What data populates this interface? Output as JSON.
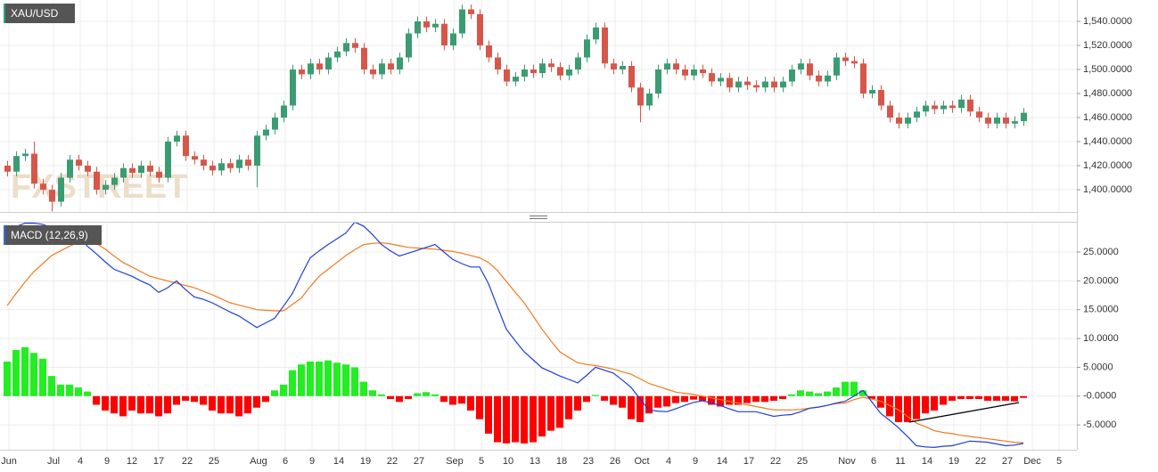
{
  "chart_data": [
    {
      "type": "candlestick",
      "title": "XAU/USD",
      "watermark": "FXSTREET",
      "up_color": "#3b9c72",
      "down_color": "#d6574a",
      "ylim": [
        1381.5,
        1557.8
      ],
      "yticks": [
        {
          "value": 1400,
          "label": "1,400.0000"
        },
        {
          "value": 1420,
          "label": "1,420.0000"
        },
        {
          "value": 1440,
          "label": "1,440.0000"
        },
        {
          "value": 1460,
          "label": "1,460.0000"
        },
        {
          "value": 1480,
          "label": "1,480.0000"
        },
        {
          "value": 1500,
          "label": "1,500.0000"
        },
        {
          "value": 1520,
          "label": "1,520.0000"
        },
        {
          "value": 1540,
          "label": "1,540.0000"
        }
      ],
      "grid": true,
      "open": [
        1420,
        1415,
        1428,
        1430,
        1405,
        1400,
        1390,
        1410,
        1425,
        1420,
        1415,
        1400,
        1404,
        1410,
        1418,
        1414,
        1420,
        1415,
        1410,
        1440,
        1445,
        1428,
        1425,
        1420,
        1416,
        1422,
        1418,
        1425,
        1420,
        1445,
        1450,
        1460,
        1470,
        1500,
        1496,
        1505,
        1500,
        1510,
        1515,
        1522,
        1518,
        1500,
        1496,
        1505,
        1500,
        1510,
        1530,
        1540,
        1535,
        1538,
        1520,
        1530,
        1550,
        1546,
        1520,
        1510,
        1500,
        1490,
        1494,
        1500,
        1497,
        1505,
        1502,
        1495,
        1500,
        1510,
        1525,
        1535,
        1505,
        1500,
        1503,
        1485,
        1470,
        1480,
        1500,
        1505,
        1500,
        1495,
        1500,
        1497,
        1490,
        1493,
        1485,
        1490,
        1487,
        1485,
        1490,
        1485,
        1490,
        1500,
        1505,
        1495,
        1490,
        1495,
        1510,
        1507,
        1505,
        1480,
        1483,
        1470,
        1460,
        1455,
        1460,
        1465,
        1470,
        1467,
        1470,
        1468,
        1475,
        1465,
        1460,
        1455,
        1460,
        1455,
        1457
      ],
      "high": [
        1424,
        1432,
        1434,
        1440,
        1409,
        1404,
        1414,
        1429,
        1429,
        1424,
        1419,
        1408,
        1414,
        1422,
        1422,
        1424,
        1424,
        1419,
        1444,
        1449,
        1449,
        1432,
        1429,
        1424,
        1426,
        1426,
        1429,
        1429,
        1449,
        1454,
        1464,
        1474,
        1504,
        1504,
        1509,
        1509,
        1514,
        1519,
        1526,
        1526,
        1522,
        1504,
        1509,
        1509,
        1514,
        1534,
        1544,
        1544,
        1542,
        1542,
        1534,
        1554,
        1554,
        1550,
        1524,
        1514,
        1504,
        1498,
        1504,
        1504,
        1509,
        1509,
        1506,
        1504,
        1514,
        1529,
        1539,
        1539,
        1509,
        1507,
        1507,
        1489,
        1484,
        1504,
        1509,
        1509,
        1504,
        1504,
        1504,
        1501,
        1497,
        1497,
        1494,
        1494,
        1491,
        1494,
        1494,
        1494,
        1504,
        1509,
        1509,
        1499,
        1499,
        1514,
        1514,
        1511,
        1509,
        1487,
        1487,
        1474,
        1464,
        1464,
        1469,
        1474,
        1474,
        1474,
        1474,
        1479,
        1479,
        1469,
        1464,
        1464,
        1464,
        1461,
        1468
      ],
      "low": [
        1411,
        1411,
        1424,
        1401,
        1396,
        1382,
        1386,
        1406,
        1416,
        1411,
        1396,
        1396,
        1400,
        1406,
        1410,
        1410,
        1411,
        1406,
        1406,
        1436,
        1424,
        1421,
        1416,
        1412,
        1412,
        1414,
        1414,
        1416,
        1402,
        1441,
        1446,
        1456,
        1466,
        1492,
        1492,
        1496,
        1496,
        1506,
        1511,
        1514,
        1496,
        1492,
        1492,
        1496,
        1496,
        1506,
        1526,
        1531,
        1531,
        1516,
        1516,
        1526,
        1542,
        1516,
        1506,
        1496,
        1486,
        1486,
        1490,
        1493,
        1493,
        1498,
        1491,
        1491,
        1496,
        1506,
        1521,
        1501,
        1496,
        1496,
        1481,
        1456,
        1466,
        1476,
        1496,
        1496,
        1491,
        1491,
        1493,
        1486,
        1486,
        1481,
        1481,
        1483,
        1481,
        1481,
        1481,
        1481,
        1486,
        1496,
        1491,
        1486,
        1486,
        1491,
        1503,
        1501,
        1476,
        1476,
        1466,
        1456,
        1451,
        1451,
        1456,
        1461,
        1463,
        1463,
        1464,
        1464,
        1461,
        1456,
        1451,
        1451,
        1451,
        1451,
        1453
      ],
      "close": [
        1415,
        1428,
        1430,
        1405,
        1400,
        1390,
        1410,
        1425,
        1420,
        1415,
        1400,
        1404,
        1410,
        1418,
        1414,
        1420,
        1415,
        1410,
        1440,
        1445,
        1428,
        1425,
        1420,
        1416,
        1422,
        1418,
        1425,
        1420,
        1445,
        1450,
        1460,
        1470,
        1500,
        1496,
        1505,
        1500,
        1510,
        1515,
        1522,
        1518,
        1500,
        1496,
        1505,
        1500,
        1510,
        1530,
        1540,
        1535,
        1538,
        1520,
        1530,
        1550,
        1546,
        1520,
        1510,
        1500,
        1490,
        1494,
        1500,
        1497,
        1505,
        1502,
        1495,
        1500,
        1510,
        1525,
        1535,
        1505,
        1500,
        1503,
        1485,
        1470,
        1480,
        1500,
        1505,
        1500,
        1495,
        1500,
        1497,
        1490,
        1493,
        1485,
        1490,
        1487,
        1485,
        1490,
        1485,
        1490,
        1500,
        1505,
        1495,
        1490,
        1495,
        1510,
        1507,
        1505,
        1480,
        1483,
        1470,
        1460,
        1455,
        1460,
        1465,
        1470,
        1467,
        1470,
        1468,
        1475,
        1465,
        1460,
        1455,
        1460,
        1455,
        1457,
        1464
      ]
    },
    {
      "type": "macd",
      "title": "MACD (12,26,9)",
      "ylim": [
        -9.3,
        30.1
      ],
      "yticks": [
        {
          "value": -5,
          "label": "-5.0000"
        },
        {
          "value": 0,
          "label": "-0.0000"
        },
        {
          "value": 5,
          "label": "5.0000"
        },
        {
          "value": 10,
          "label": "10.0000"
        },
        {
          "value": 15,
          "label": "15.0000"
        },
        {
          "value": 20,
          "label": "20.0000"
        },
        {
          "value": 25,
          "label": "25.0000"
        }
      ],
      "grid": true,
      "x_labels": [
        "Jun",
        "Jul",
        "4",
        "9",
        "12",
        "17",
        "22",
        "25",
        "Aug",
        "6",
        "9",
        "14",
        "19",
        "22",
        "27",
        "Sep",
        "5",
        "10",
        "13",
        "18",
        "23",
        "26",
        "Oct",
        "4",
        "9",
        "14",
        "17",
        "22",
        "25",
        "Nov",
        "6",
        "11",
        "14",
        "19",
        "22",
        "27",
        "Dec",
        "5"
      ],
      "histogram": {
        "up_color": "#22ee22",
        "down_color": "#ff0000",
        "values": [
          6,
          8,
          8.5,
          7.5,
          6.5,
          3.5,
          2,
          2,
          1.5,
          0.8,
          -1.5,
          -2.5,
          -3,
          -3.5,
          -2.5,
          -3,
          -3,
          -3.5,
          -3,
          -1.5,
          -0.8,
          -1,
          -1.5,
          -2.5,
          -3,
          -3,
          -3.5,
          -3,
          -2,
          -1,
          1,
          2,
          4.5,
          5.5,
          6,
          6,
          6.2,
          5.8,
          5.5,
          5,
          2.5,
          1,
          0.3,
          -0.5,
          -1,
          -0.5,
          0.5,
          0.7,
          0.3,
          -1,
          -1.5,
          -1.3,
          -2.5,
          -4,
          -6.5,
          -8,
          -8.2,
          -8,
          -8.2,
          -8,
          -7,
          -6,
          -5.5,
          -4,
          -2.5,
          -1,
          0.2,
          -0.8,
          -1.5,
          -2,
          -4,
          -4.5,
          -3,
          -2,
          -1.8,
          -1.2,
          -1,
          -0.6,
          -0.8,
          -1.5,
          -1.8,
          -1.5,
          -1.5,
          -1.2,
          -1,
          -1,
          -0.8,
          -0.5,
          0.3,
          1,
          0.8,
          0.5,
          0.8,
          1.5,
          2.5,
          2.5,
          1,
          -0.5,
          -2,
          -3.5,
          -4.5,
          -4.5,
          -4,
          -3,
          -2.5,
          -1.5,
          -0.8,
          -0.5,
          -0.5,
          -0.5,
          -0.8,
          -0.8,
          -0.8,
          -0.9,
          -0.3
        ]
      },
      "macd": {
        "color": "#1f3fd6",
        "values": [
          26.3,
          29.4,
          30,
          30,
          29.8,
          29.2,
          28.6,
          28.2,
          27.8,
          26,
          24.7,
          23.3,
          22,
          21.4,
          20.8,
          20,
          19.3,
          18,
          18.8,
          20,
          18.5,
          17.2,
          16.8,
          16.2,
          15.4,
          14.6,
          13.9,
          12.9,
          11.9,
          12.7,
          13.5,
          15.6,
          17.8,
          21,
          24,
          25.2,
          26.3,
          27.3,
          28.3,
          30.2,
          29.5,
          28,
          26.3,
          25.2,
          24.3,
          24.8,
          25.3,
          25.8,
          26.3,
          25,
          23.7,
          23,
          22.4,
          22.4,
          19.5,
          15.5,
          11.6,
          9.6,
          7.7,
          6.3,
          4.9,
          4.2,
          3.5,
          2.9,
          2.3,
          3.6,
          5,
          4.5,
          4,
          2.8,
          1.5,
          -0.5,
          -2.4,
          -2.6,
          -2.7,
          -2.2,
          -1.6,
          -1.1,
          -0.8,
          -1.2,
          -1.6,
          -2.2,
          -2.7,
          -2.7,
          -2.7,
          -3.1,
          -3.5,
          -3.3,
          -3.2,
          -2.7,
          -2.1,
          -1.9,
          -1.6,
          -1.2,
          -0.9,
          0,
          1,
          -1,
          -3,
          -4.2,
          -5.5,
          -7,
          -8.6,
          -8.8,
          -8.9,
          -8.7,
          -8.6,
          -8.2,
          -7.8,
          -7.9,
          -8,
          -8.3,
          -8.6,
          -8.5,
          -8.2
        ]
      },
      "signal": {
        "color": "#f07a22",
        "values": [
          15.7,
          17.8,
          19.8,
          21.6,
          23,
          24.4,
          25.2,
          26,
          26.7,
          26.8,
          26.5,
          25.5,
          24.3,
          23.2,
          22.4,
          21.6,
          20.8,
          20.4,
          20,
          19.6,
          19.2,
          18.8,
          18.2,
          17.6,
          16.9,
          16.2,
          15.8,
          15.4,
          15,
          14.9,
          14.8,
          14.8,
          15.9,
          17,
          19,
          20.8,
          22,
          23.2,
          24.4,
          25.4,
          26.3,
          26.5,
          26.6,
          26.4,
          26.1,
          25.8,
          25.7,
          25.6,
          25.5,
          25.3,
          25.1,
          24.8,
          24.4,
          24,
          23.2,
          21.8,
          19.9,
          18,
          16.2,
          13.9,
          11.6,
          9.6,
          7.7,
          6.7,
          5.8,
          5.5,
          5.3,
          5,
          4.7,
          4.2,
          3.8,
          3,
          2.2,
          1.7,
          1.2,
          0.7,
          0.5,
          0.3,
          0,
          -0.3,
          -0.6,
          -0.9,
          -1.2,
          -1.5,
          -1.8,
          -2.1,
          -2.4,
          -2.4,
          -2.4,
          -2.3,
          -2.1,
          -1.9,
          -1.6,
          -1.3,
          -1.2,
          -0.6,
          -0.2,
          -0.5,
          -0.9,
          -1.6,
          -2.4,
          -3.5,
          -4.7,
          -5.3,
          -6,
          -6.3,
          -6.5,
          -6.8,
          -7,
          -7.2,
          -7.4,
          -7.6,
          -7.8,
          -8,
          -8.1
        ]
      }
    }
  ]
}
